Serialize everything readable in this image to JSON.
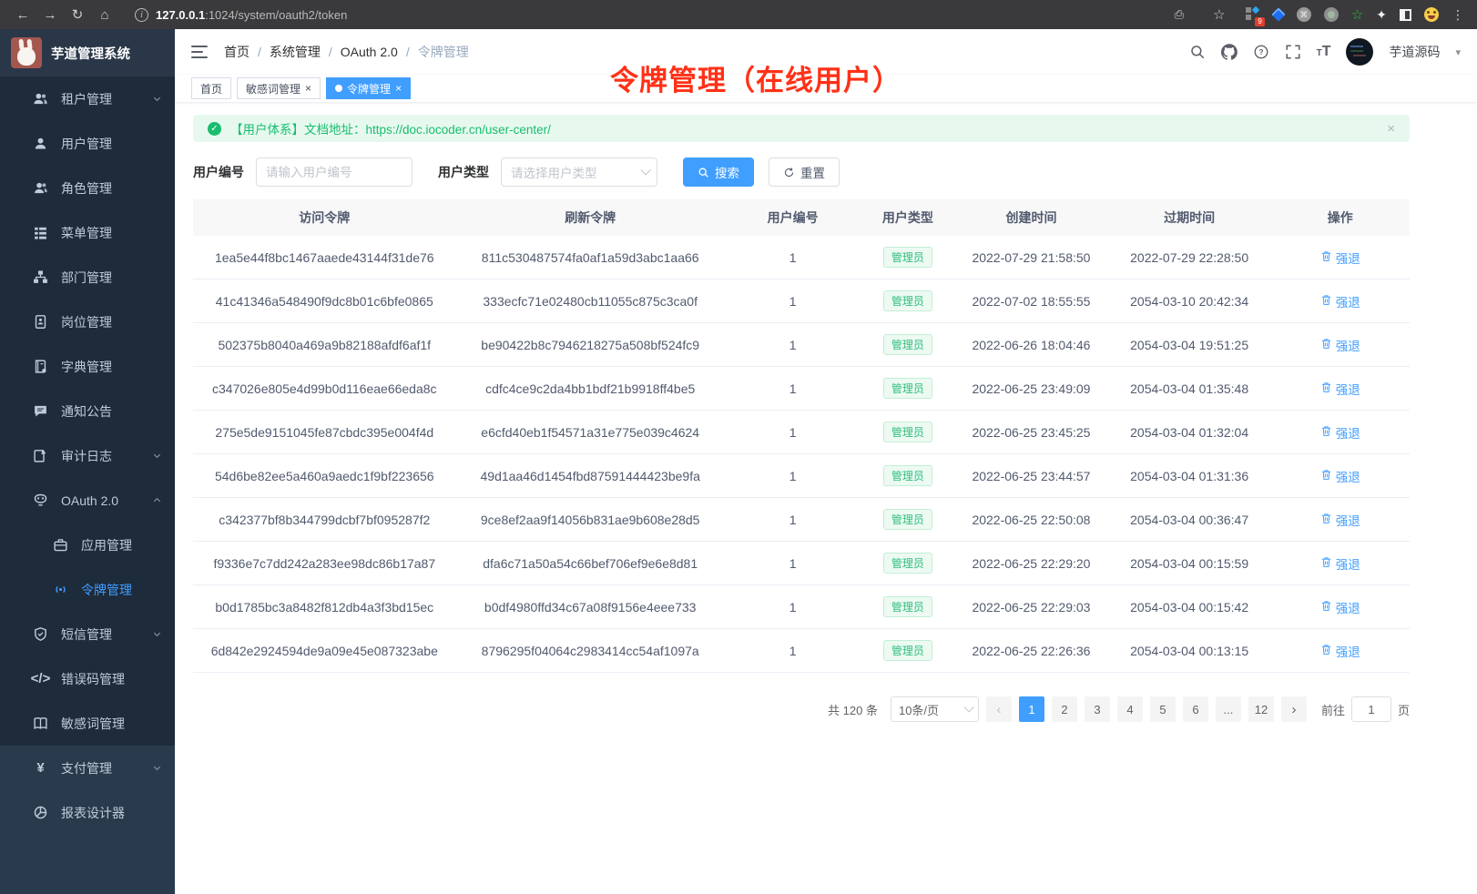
{
  "browser": {
    "url_host": "127.0.0.1",
    "url_rest": ":1024/system/oauth2/token",
    "extension_badge": "9"
  },
  "colors": {
    "primary": "#409eff",
    "success": "#18bd6d",
    "annotation_red": "#ff3117",
    "sidebar_bg": "#1d2b3b"
  },
  "app": {
    "title": "芋道管理系统"
  },
  "breadcrumb": {
    "items": [
      "首页",
      "系统管理",
      "OAuth 2.0",
      "令牌管理"
    ]
  },
  "header": {
    "user_name": "芋道源码"
  },
  "tabsbar": {
    "annotation": "令牌管理（在线用户）",
    "tabs": [
      {
        "name": "home",
        "label": "首页",
        "closable": false,
        "active": false
      },
      {
        "name": "sensitive-word",
        "label": "敏感词管理",
        "closable": true,
        "active": false
      },
      {
        "name": "token",
        "label": "令牌管理",
        "closable": true,
        "active": true
      }
    ],
    "close_glyph": "×"
  },
  "sidebar": {
    "items": [
      {
        "name": "tenant",
        "icon": "users-icon",
        "label": "租户管理",
        "chevron": "down"
      },
      {
        "name": "user",
        "icon": "user-icon",
        "label": "用户管理"
      },
      {
        "name": "role",
        "icon": "role-icon",
        "label": "角色管理"
      },
      {
        "name": "menu",
        "icon": "menu-icon",
        "label": "菜单管理"
      },
      {
        "name": "dept",
        "icon": "dept-icon",
        "label": "部门管理"
      },
      {
        "name": "post",
        "icon": "post-icon",
        "label": "岗位管理"
      },
      {
        "name": "dict",
        "icon": "dict-icon",
        "label": "字典管理"
      },
      {
        "name": "notice",
        "icon": "notice-icon",
        "label": "通知公告"
      },
      {
        "name": "audit-log",
        "icon": "audit-icon",
        "label": "审计日志",
        "chevron": "down"
      },
      {
        "name": "oauth2",
        "icon": "oauth-icon",
        "label": "OAuth 2.0",
        "chevron": "up"
      },
      {
        "name": "oauth2-app",
        "icon": "app-icon",
        "label": "应用管理",
        "sub": true
      },
      {
        "name": "oauth2-token",
        "icon": "token-icon",
        "label": "令牌管理",
        "sub": true,
        "active": true
      },
      {
        "name": "sms",
        "icon": "sms-icon",
        "label": "短信管理",
        "chevron": "down"
      },
      {
        "name": "error-code",
        "icon": "errcode-icon",
        "label": "错误码管理"
      },
      {
        "name": "sensitive-word",
        "icon": "sensitive-icon",
        "label": "敏感词管理"
      },
      {
        "name": "pay",
        "icon": "pay-icon",
        "label": "支付管理",
        "chevron": "down",
        "section": "lower"
      },
      {
        "name": "report-designer",
        "icon": "report-icon",
        "label": "报表设计器",
        "section": "lower"
      }
    ]
  },
  "alert": {
    "text": "【用户体系】文档地址：",
    "link": "https://doc.iocoder.cn/user-center/",
    "close_glyph": "×"
  },
  "filters": {
    "user_id_label": "用户编号",
    "user_id_placeholder": "请输入用户编号",
    "user_type_label": "用户类型",
    "user_type_placeholder": "请选择用户类型",
    "search_label": "搜索",
    "reset_label": "重置"
  },
  "table": {
    "headers": [
      "访问令牌",
      "刷新令牌",
      "用户编号",
      "用户类型",
      "创建时间",
      "过期时间",
      "操作"
    ],
    "action_label": "强退",
    "rows": [
      {
        "access": "1ea5e44f8bc1467aaede43144f31de76",
        "refresh": "811c530487574fa0af1a59d3abc1aa66",
        "user_id": "1",
        "user_type": "管理员",
        "created": "2022-07-29 21:58:50",
        "expired": "2022-07-29 22:28:50"
      },
      {
        "access": "41c41346a548490f9dc8b01c6bfe0865",
        "refresh": "333ecfc71e02480cb11055c875c3ca0f",
        "user_id": "1",
        "user_type": "管理员",
        "created": "2022-07-02 18:55:55",
        "expired": "2054-03-10 20:42:34"
      },
      {
        "access": "502375b8040a469a9b82188afdf6af1f",
        "refresh": "be90422b8c7946218275a508bf524fc9",
        "user_id": "1",
        "user_type": "管理员",
        "created": "2022-06-26 18:04:46",
        "expired": "2054-03-04 19:51:25"
      },
      {
        "access": "c347026e805e4d99b0d116eae66eda8c",
        "refresh": "cdfc4ce9c2da4bb1bdf21b9918ff4be5",
        "user_id": "1",
        "user_type": "管理员",
        "created": "2022-06-25 23:49:09",
        "expired": "2054-03-04 01:35:48"
      },
      {
        "access": "275e5de9151045fe87cbdc395e004f4d",
        "refresh": "e6cfd40eb1f54571a31e775e039c4624",
        "user_id": "1",
        "user_type": "管理员",
        "created": "2022-06-25 23:45:25",
        "expired": "2054-03-04 01:32:04"
      },
      {
        "access": "54d6be82ee5a460a9aedc1f9bf223656",
        "refresh": "49d1aa46d1454fbd87591444423be9fa",
        "user_id": "1",
        "user_type": "管理员",
        "created": "2022-06-25 23:44:57",
        "expired": "2054-03-04 01:31:36"
      },
      {
        "access": "c342377bf8b344799dcbf7bf095287f2",
        "refresh": "9ce8ef2aa9f14056b831ae9b608e28d5",
        "user_id": "1",
        "user_type": "管理员",
        "created": "2022-06-25 22:50:08",
        "expired": "2054-03-04 00:36:47"
      },
      {
        "access": "f9336e7c7dd242a283ee98dc86b17a87",
        "refresh": "dfa6c71a50a54c66bef706ef9e6e8d81",
        "user_id": "1",
        "user_type": "管理员",
        "created": "2022-06-25 22:29:20",
        "expired": "2054-03-04 00:15:59"
      },
      {
        "access": "b0d1785bc3a8482f812db4a3f3bd15ec",
        "refresh": "b0df4980ffd34c67a08f9156e4eee733",
        "user_id": "1",
        "user_type": "管理员",
        "created": "2022-06-25 22:29:03",
        "expired": "2054-03-04 00:15:42"
      },
      {
        "access": "6d842e2924594de9a09e45e087323abe",
        "refresh": "8796295f04064c2983414cc54af1097a",
        "user_id": "1",
        "user_type": "管理员",
        "created": "2022-06-25 22:26:36",
        "expired": "2054-03-04 00:13:15"
      }
    ]
  },
  "pagination": {
    "total": "共 120 条",
    "page_size": "10条/页",
    "pages": [
      "1",
      "2",
      "3",
      "4",
      "5",
      "6",
      "...",
      "12"
    ],
    "current": "1",
    "prev_glyph": "‹",
    "next_glyph": "›",
    "goto_label": "前往",
    "goto_value": "1",
    "goto_suffix": "页"
  }
}
